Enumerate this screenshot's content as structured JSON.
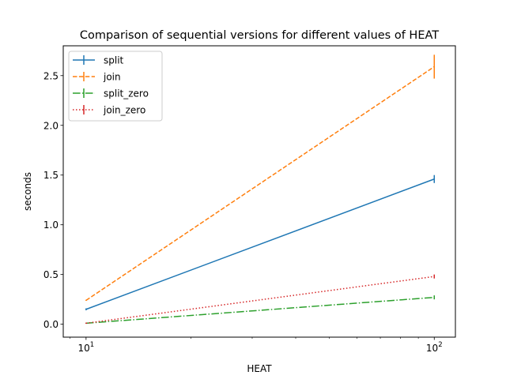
{
  "chart_data": {
    "type": "line",
    "title": "Comparison of sequential versions for different values of HEAT",
    "xlabel": "HEAT",
    "ylabel": "seconds",
    "x_scale": "log",
    "x": [
      10,
      100
    ],
    "xlim": [
      8.6,
      115
    ],
    "ylim": [
      -0.13,
      2.8
    ],
    "yticks": [
      0.0,
      0.5,
      1.0,
      1.5,
      2.0,
      2.5
    ],
    "ytick_labels": [
      "0.0",
      "0.5",
      "1.0",
      "1.5",
      "2.0",
      "2.5"
    ],
    "xtick_labels": [
      {
        "base": "10",
        "exp": "1",
        "value": 10
      },
      {
        "base": "10",
        "exp": "2",
        "value": 100
      }
    ],
    "grid": false,
    "legend_position": "top-left",
    "series": [
      {
        "name": "split",
        "values": [
          0.15,
          1.46
        ],
        "errors": [
          0.01,
          0.04
        ],
        "color": "#1f77b4",
        "linestyle": "solid"
      },
      {
        "name": "join",
        "values": [
          0.24,
          2.59
        ],
        "errors": [
          0.005,
          0.12
        ],
        "color": "#ff7f0e",
        "linestyle": "dashed"
      },
      {
        "name": "split_zero",
        "values": [
          0.01,
          0.27
        ],
        "errors": [
          0.005,
          0.02
        ],
        "color": "#2ca02c",
        "linestyle": "dashdot"
      },
      {
        "name": "join_zero",
        "values": [
          0.01,
          0.48
        ],
        "errors": [
          0.005,
          0.02
        ],
        "color": "#d62728",
        "linestyle": "dotted"
      }
    ]
  }
}
